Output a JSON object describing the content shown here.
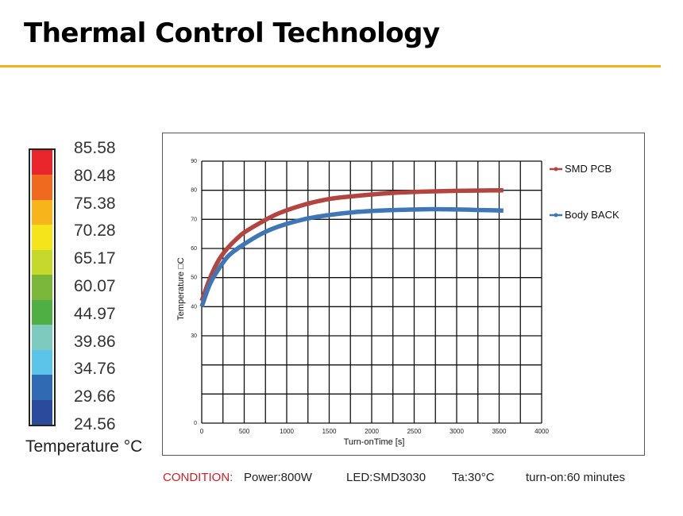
{
  "header": {
    "title": "Thermal Control Technology"
  },
  "legend": {
    "values": [
      "85.58",
      "80.48",
      "75.38",
      "70.28",
      "65.17",
      "60.07",
      "44.97",
      "39.86",
      "34.76",
      "29.66",
      "24.56"
    ],
    "colors": [
      "#e8252b",
      "#ef6a1f",
      "#f7b41b",
      "#f6e41a",
      "#c4d92b",
      "#79b63a",
      "#4fae44",
      "#7ecabf",
      "#5bc2e8",
      "#2f69b2",
      "#2a4b9c"
    ],
    "caption": "Temperature °C"
  },
  "chart_data": {
    "type": "line",
    "ylabel": "Temperature □C",
    "xlabel": "Turn-onTime [s]",
    "xlim": [
      0,
      4000
    ],
    "ylim": [
      0,
      90
    ],
    "xticks": [
      "0",
      "500",
      "1000",
      "1500",
      "2000",
      "2500",
      "3000",
      "3500",
      "4000"
    ],
    "yticks": [
      "0",
      "30",
      "40",
      "50",
      "60",
      "70",
      "80",
      "90"
    ],
    "grid": true,
    "legend_position": "right",
    "series": [
      {
        "name": "SMD PCB",
        "color": "#b34541",
        "x": [
          0,
          100,
          200,
          300,
          400,
          500,
          700,
          900,
          1200,
          1500,
          1800,
          2100,
          2400,
          2700,
          3000,
          3300,
          3550
        ],
        "y": [
          42,
          50,
          56,
          60,
          63,
          65.5,
          69,
          72,
          75,
          77,
          78,
          78.8,
          79.3,
          79.6,
          79.8,
          79.9,
          80
        ]
      },
      {
        "name": "Body BACK",
        "color": "#3f76b5",
        "x": [
          0,
          100,
          200,
          300,
          400,
          500,
          700,
          900,
          1200,
          1500,
          1800,
          2100,
          2400,
          2700,
          3000,
          3300,
          3550
        ],
        "y": [
          40,
          48,
          53,
          57,
          59.5,
          61.5,
          65,
          67.5,
          70,
          71.5,
          72.5,
          73,
          73.3,
          73.5,
          73.4,
          73.2,
          73
        ]
      }
    ]
  },
  "condition": {
    "label": "CONDITION:",
    "power": "Power:800W",
    "led": "LED:SMD3030",
    "ta": "Ta:30°C",
    "turn_on": "turn-on:60 minutes"
  }
}
